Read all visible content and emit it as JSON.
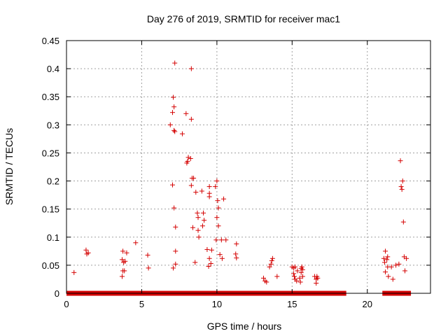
{
  "chart_data": {
    "type": "scatter",
    "title": "Day 276 of 2019, SRMTID for receiver mac1",
    "xlabel": "GPS time / hours",
    "ylabel": "SRMTID / TECUs",
    "xlim": [
      0,
      24.2
    ],
    "ylim": [
      0,
      0.45
    ],
    "xticks": [
      0,
      5,
      10,
      15,
      20
    ],
    "yticks": [
      0,
      0.05,
      0.1,
      0.15,
      0.2,
      0.25,
      0.3,
      0.35,
      0.4,
      0.45
    ],
    "xtick_labels": [
      "0",
      "5",
      "10",
      "15",
      "20"
    ],
    "ytick_labels": [
      "0",
      "0.05",
      "0.1",
      "0.15",
      "0.2",
      "0.25",
      "0.3",
      "0.35",
      "0.4",
      "0.45"
    ],
    "grid": true,
    "marker": "+",
    "color": "#d40000",
    "baseline_segments": [
      {
        "x_start": 0.0,
        "x_end": 18.6,
        "y": 0
      },
      {
        "x_start": 21.0,
        "x_end": 22.9,
        "y": 0
      }
    ],
    "series": [
      {
        "name": "SRMTID",
        "points": [
          [
            0.5,
            0.037
          ],
          [
            1.3,
            0.077
          ],
          [
            1.35,
            0.07
          ],
          [
            1.45,
            0.072
          ],
          [
            3.7,
            0.06
          ],
          [
            3.75,
            0.075
          ],
          [
            3.8,
            0.055
          ],
          [
            3.75,
            0.04
          ],
          [
            3.7,
            0.03
          ],
          [
            3.85,
            0.04
          ],
          [
            3.9,
            0.057
          ],
          [
            4.0,
            0.072
          ],
          [
            4.6,
            0.09
          ],
          [
            5.4,
            0.068
          ],
          [
            5.45,
            0.045
          ],
          [
            6.9,
            0.3
          ],
          [
            7.05,
            0.322
          ],
          [
            7.1,
            0.349
          ],
          [
            7.15,
            0.332
          ],
          [
            7.15,
            0.29
          ],
          [
            7.2,
            0.288
          ],
          [
            7.2,
            0.41
          ],
          [
            7.05,
            0.193
          ],
          [
            7.15,
            0.152
          ],
          [
            7.25,
            0.118
          ],
          [
            7.25,
            0.075
          ],
          [
            7.1,
            0.045
          ],
          [
            7.25,
            0.052
          ],
          [
            7.7,
            0.284
          ],
          [
            7.95,
            0.32
          ],
          [
            8.0,
            0.232
          ],
          [
            8.05,
            0.235
          ],
          [
            8.1,
            0.242
          ],
          [
            8.25,
            0.24
          ],
          [
            8.3,
            0.4
          ],
          [
            8.3,
            0.31
          ],
          [
            8.3,
            0.192
          ],
          [
            8.35,
            0.205
          ],
          [
            8.45,
            0.205
          ],
          [
            8.4,
            0.117
          ],
          [
            8.55,
            0.055
          ],
          [
            8.6,
            0.18
          ],
          [
            8.7,
            0.143
          ],
          [
            8.75,
            0.135
          ],
          [
            8.75,
            0.112
          ],
          [
            8.8,
            0.1
          ],
          [
            9.0,
            0.182
          ],
          [
            9.05,
            0.12
          ],
          [
            9.1,
            0.143
          ],
          [
            9.15,
            0.13
          ],
          [
            9.35,
            0.078
          ],
          [
            9.5,
            0.19
          ],
          [
            9.5,
            0.178
          ],
          [
            9.5,
            0.172
          ],
          [
            9.5,
            0.062
          ],
          [
            9.45,
            0.048
          ],
          [
            9.6,
            0.053
          ],
          [
            9.65,
            0.077
          ],
          [
            9.9,
            0.19
          ],
          [
            10.0,
            0.2
          ],
          [
            10.0,
            0.135
          ],
          [
            10.05,
            0.165
          ],
          [
            10.1,
            0.152
          ],
          [
            10.1,
            0.12
          ],
          [
            9.95,
            0.095
          ],
          [
            10.2,
            0.069
          ],
          [
            10.3,
            0.095
          ],
          [
            10.35,
            0.062
          ],
          [
            10.45,
            0.168
          ],
          [
            10.6,
            0.095
          ],
          [
            11.3,
            0.088
          ],
          [
            11.25,
            0.07
          ],
          [
            11.3,
            0.063
          ],
          [
            13.1,
            0.027
          ],
          [
            13.2,
            0.022
          ],
          [
            13.3,
            0.02
          ],
          [
            13.5,
            0.047
          ],
          [
            13.6,
            0.052
          ],
          [
            13.65,
            0.058
          ],
          [
            13.7,
            0.062
          ],
          [
            14.0,
            0.03
          ],
          [
            15.0,
            0.047
          ],
          [
            15.1,
            0.045
          ],
          [
            15.1,
            0.035
          ],
          [
            15.15,
            0.03
          ],
          [
            15.2,
            0.047
          ],
          [
            15.2,
            0.025
          ],
          [
            15.3,
            0.022
          ],
          [
            15.35,
            0.04
          ],
          [
            15.5,
            0.027
          ],
          [
            15.55,
            0.02
          ],
          [
            15.6,
            0.037
          ],
          [
            15.6,
            0.044
          ],
          [
            15.65,
            0.047
          ],
          [
            15.7,
            0.042
          ],
          [
            15.7,
            0.03
          ],
          [
            16.5,
            0.03
          ],
          [
            16.6,
            0.025
          ],
          [
            16.6,
            0.018
          ],
          [
            16.65,
            0.03
          ],
          [
            16.7,
            0.027
          ],
          [
            21.1,
            0.062
          ],
          [
            21.15,
            0.055
          ],
          [
            21.2,
            0.038
          ],
          [
            21.2,
            0.075
          ],
          [
            21.3,
            0.06
          ],
          [
            21.35,
            0.065
          ],
          [
            21.35,
            0.047
          ],
          [
            21.4,
            0.03
          ],
          [
            21.6,
            0.047
          ],
          [
            21.7,
            0.025
          ],
          [
            21.9,
            0.05
          ],
          [
            22.1,
            0.052
          ],
          [
            22.2,
            0.236
          ],
          [
            22.25,
            0.19
          ],
          [
            22.3,
            0.185
          ],
          [
            22.35,
            0.2
          ],
          [
            22.4,
            0.127
          ],
          [
            22.45,
            0.065
          ],
          [
            22.5,
            0.04
          ],
          [
            22.6,
            0.062
          ]
        ]
      }
    ]
  }
}
